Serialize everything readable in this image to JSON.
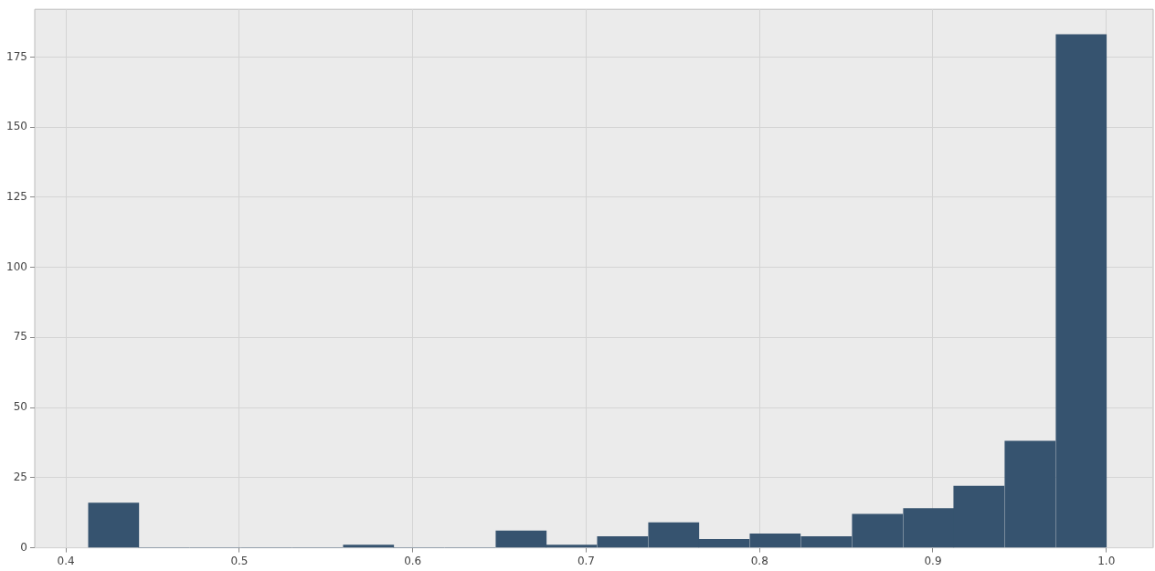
{
  "chart_data": {
    "type": "histogram",
    "bins": [
      0.413,
      0.442,
      0.471,
      0.501,
      0.53,
      0.56,
      0.589,
      0.618,
      0.648,
      0.677,
      0.706,
      0.736,
      0.765,
      0.794,
      0.824,
      0.853,
      0.883,
      0.912,
      0.941,
      0.971,
      1.0
    ],
    "values": [
      16,
      0,
      0,
      0,
      0,
      1,
      0,
      0,
      6,
      1,
      4,
      9,
      3,
      5,
      4,
      12,
      14,
      22,
      38,
      183
    ],
    "color": "#36536f",
    "xlim": [
      0.382,
      1.027
    ],
    "xticks": [
      0.4,
      0.5,
      0.6,
      0.7,
      0.8,
      0.9,
      {
        "value": 1,
        "label": "1.0"
      }
    ],
    "ylim": [
      0,
      192
    ],
    "yticks": [
      0,
      25,
      50,
      75,
      100,
      125,
      150,
      175
    ],
    "grid": true,
    "legend": false
  }
}
